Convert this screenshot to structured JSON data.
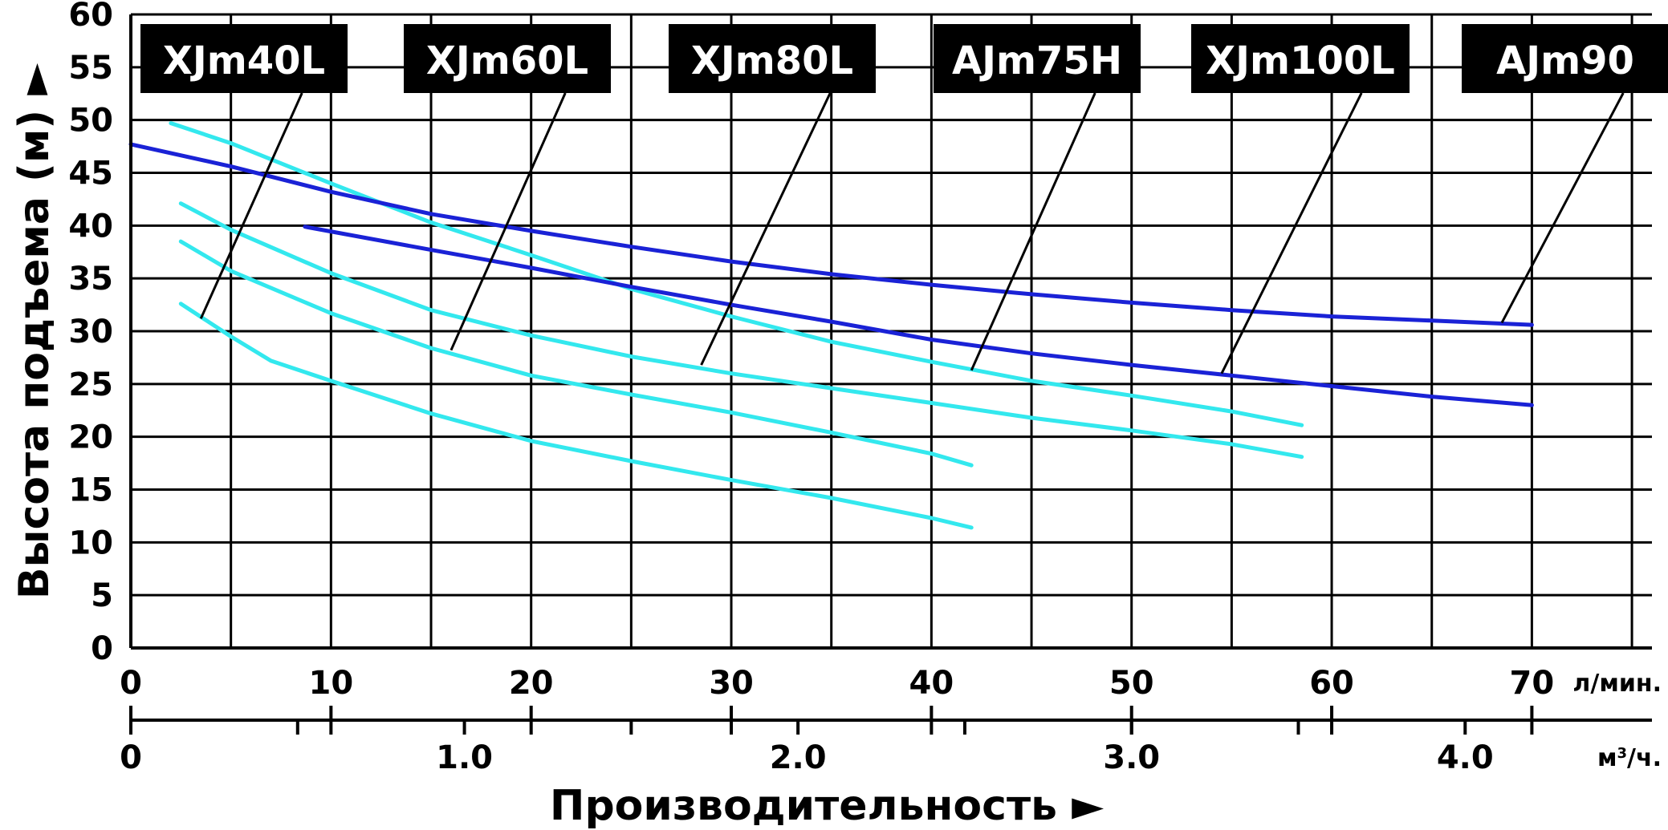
{
  "chart_data": {
    "type": "line",
    "title": "",
    "ylabel": "Высота подъема (м) ►",
    "xlabel": "Производительность ►",
    "x_unit_primary": "л/мин.",
    "x_unit_secondary_base": "м",
    "x_unit_secondary_sup": "3",
    "x_unit_secondary_tail": "/ч.",
    "xlim": [
      0,
      76
    ],
    "ylim": [
      0,
      60
    ],
    "y_ticks": [
      0,
      5,
      10,
      15,
      20,
      25,
      30,
      35,
      40,
      45,
      50,
      55,
      60
    ],
    "x_ticks_primary": [
      {
        "value": 0,
        "label": "0"
      },
      {
        "value": 10,
        "label": "10"
      },
      {
        "value": 20,
        "label": "20"
      },
      {
        "value": 30,
        "label": "30"
      },
      {
        "value": 40,
        "label": "40"
      },
      {
        "value": 50,
        "label": "50"
      },
      {
        "value": 60,
        "label": "60"
      },
      {
        "value": 70,
        "label": "70"
      }
    ],
    "x_ticks_secondary": [
      {
        "value": 0,
        "label": "0"
      },
      {
        "value": 1.0,
        "label": "1.0"
      },
      {
        "value": 2.0,
        "label": "2.0"
      },
      {
        "value": 3.0,
        "label": "3.0"
      },
      {
        "value": 4.0,
        "label": "4.0"
      }
    ],
    "x_secondary_minor": [
      0.5,
      1.5,
      2.5,
      3.5
    ],
    "grid": true,
    "series": [
      {
        "name": "XJm40L",
        "color": "#33e8ee",
        "points": [
          [
            2.5,
            32.6
          ],
          [
            5,
            29.5
          ],
          [
            7,
            27.2
          ],
          [
            10,
            25.3
          ],
          [
            15,
            22.2
          ],
          [
            20,
            19.6
          ],
          [
            25,
            17.7
          ],
          [
            30,
            15.9
          ],
          [
            35,
            14.2
          ],
          [
            40,
            12.3
          ],
          [
            42,
            11.4
          ]
        ]
      },
      {
        "name": "XJm60L",
        "color": "#33e8ee",
        "points": [
          [
            2.5,
            38.5
          ],
          [
            5,
            35.7
          ],
          [
            10,
            31.7
          ],
          [
            15,
            28.4
          ],
          [
            20,
            25.8
          ],
          [
            25,
            24.0
          ],
          [
            30,
            22.3
          ],
          [
            35,
            20.4
          ],
          [
            40,
            18.4
          ],
          [
            42,
            17.3
          ]
        ]
      },
      {
        "name": "XJm80L",
        "color": "#33e8ee",
        "points": [
          [
            2.5,
            42.1
          ],
          [
            5,
            39.6
          ],
          [
            10,
            35.5
          ],
          [
            15,
            32.0
          ],
          [
            20,
            29.6
          ],
          [
            25,
            27.6
          ],
          [
            30,
            26.0
          ],
          [
            35,
            24.6
          ],
          [
            40,
            23.2
          ],
          [
            45,
            21.8
          ],
          [
            50,
            20.6
          ],
          [
            55,
            19.3
          ],
          [
            58.5,
            18.1
          ]
        ]
      },
      {
        "name": "AJm75H",
        "color": "#33e8ee",
        "points": [
          [
            2,
            49.7
          ],
          [
            5,
            47.8
          ],
          [
            10,
            44.0
          ],
          [
            15,
            40.3
          ],
          [
            20,
            37.2
          ],
          [
            25,
            34.0
          ],
          [
            30,
            31.4
          ],
          [
            35,
            29.0
          ],
          [
            40,
            27.1
          ],
          [
            45,
            25.3
          ],
          [
            50,
            23.9
          ],
          [
            55,
            22.4
          ],
          [
            58.5,
            21.1
          ]
        ]
      },
      {
        "name": "XJm100L",
        "color": "#1a22d6",
        "points": [
          [
            8.7,
            39.9
          ],
          [
            15,
            37.7
          ],
          [
            20,
            36.0
          ],
          [
            25,
            34.2
          ],
          [
            30,
            32.5
          ],
          [
            35,
            30.9
          ],
          [
            40,
            29.2
          ],
          [
            45,
            27.9
          ],
          [
            50,
            26.8
          ],
          [
            55,
            25.8
          ],
          [
            60,
            24.8
          ],
          [
            65,
            23.8
          ],
          [
            70,
            23.0
          ]
        ]
      },
      {
        "name": "AJm90",
        "color": "#1a22d6",
        "points": [
          [
            0,
            47.7
          ],
          [
            5,
            45.6
          ],
          [
            10,
            43.2
          ],
          [
            15,
            41.1
          ],
          [
            20,
            39.5
          ],
          [
            25,
            38.0
          ],
          [
            30,
            36.6
          ],
          [
            35,
            35.4
          ],
          [
            40,
            34.4
          ],
          [
            45,
            33.5
          ],
          [
            50,
            32.7
          ],
          [
            55,
            32.0
          ],
          [
            60,
            31.4
          ],
          [
            65,
            31.0
          ],
          [
            70,
            30.6
          ]
        ]
      }
    ],
    "labels": [
      {
        "text": "XJm40L",
        "leader_to": [
          3.5,
          31.2
        ]
      },
      {
        "text": "XJm60L",
        "leader_to": [
          16.0,
          28.2
        ]
      },
      {
        "text": "XJm80L",
        "leader_to": [
          28.5,
          26.8
        ]
      },
      {
        "text": "AJm75H",
        "leader_to": [
          42.0,
          26.3
        ]
      },
      {
        "text": "XJm100L",
        "leader_to": [
          54.5,
          26.0
        ]
      },
      {
        "text": "AJm90",
        "leader_to": [
          68.5,
          30.8
        ]
      }
    ]
  }
}
